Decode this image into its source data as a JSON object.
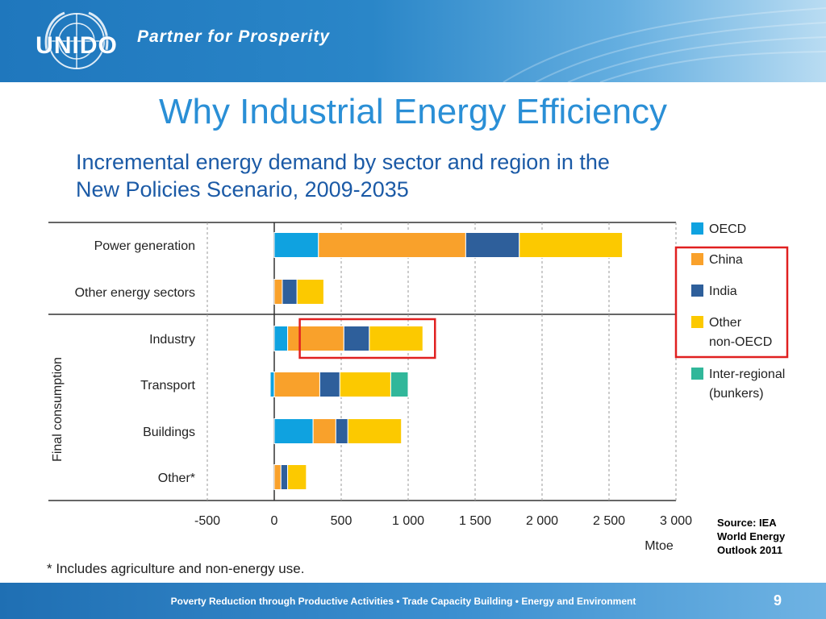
{
  "header": {
    "logo_text": "UNIDO",
    "logo_icon": "un-emblem-icon",
    "tagline": "Partner for Prosperity"
  },
  "title": "Why Industrial Energy Efficiency",
  "subtitle_line1": "Incremental energy demand by sector and region in the",
  "subtitle_line2": "New Policies Scenario, 2009-2035",
  "chart_data": {
    "type": "bar",
    "orientation": "horizontal",
    "stacked": true,
    "categories": [
      "Power generation",
      "Other energy sectors",
      "Industry",
      "Transport",
      "Buildings",
      "Other*"
    ],
    "group_label": "Final consumption",
    "series": [
      {
        "name": "OECD",
        "color": "#0fa2e0",
        "values": [
          330,
          0,
          100,
          -30,
          290,
          0
        ]
      },
      {
        "name": "China",
        "color": "#f9a12b",
        "values": [
          1100,
          60,
          420,
          340,
          170,
          50
        ]
      },
      {
        "name": "India",
        "color": "#2e5f9b",
        "values": [
          400,
          110,
          190,
          150,
          90,
          50
        ]
      },
      {
        "name": "Other non-OECD",
        "color": "#fcc900",
        "values": [
          770,
          200,
          400,
          380,
          400,
          140
        ]
      },
      {
        "name": "Inter-regional (bunkers)",
        "color": "#31b79a",
        "values": [
          0,
          0,
          0,
          130,
          0,
          0
        ]
      }
    ],
    "legend": [
      {
        "label_lines": [
          "OECD"
        ],
        "color": "#0fa2e0"
      },
      {
        "label_lines": [
          "China"
        ],
        "color": "#f9a12b"
      },
      {
        "label_lines": [
          "India"
        ],
        "color": "#2e5f9b"
      },
      {
        "label_lines": [
          "Other",
          "non-OECD"
        ],
        "color": "#fcc900"
      },
      {
        "label_lines": [
          "Inter-regional",
          "(bunkers)"
        ],
        "color": "#31b79a"
      }
    ],
    "xlim": [
      -500,
      3000
    ],
    "xticks": [
      -500,
      0,
      500,
      1000,
      1500,
      2000,
      2500,
      3000
    ],
    "xtick_labels": [
      "-500",
      "0",
      "500",
      "1 000",
      "1 500",
      "2 000",
      "2 500",
      "3 000"
    ],
    "xlabel": "Mtoe",
    "grid": true,
    "legend_position": "right",
    "highlights": [
      "Industry bar",
      "China, India and Other non-OECD legend entries"
    ],
    "highlight_color": "#e02020"
  },
  "source": [
    "Source: IEA",
    "World Energy",
    "Outlook 2011"
  ],
  "footnote": "* Includes agriculture and non-energy use.",
  "footer": {
    "text": "Poverty Reduction through Productive Activities  •  Trade Capacity Building  •  Energy and Environment",
    "page_number": "9"
  }
}
